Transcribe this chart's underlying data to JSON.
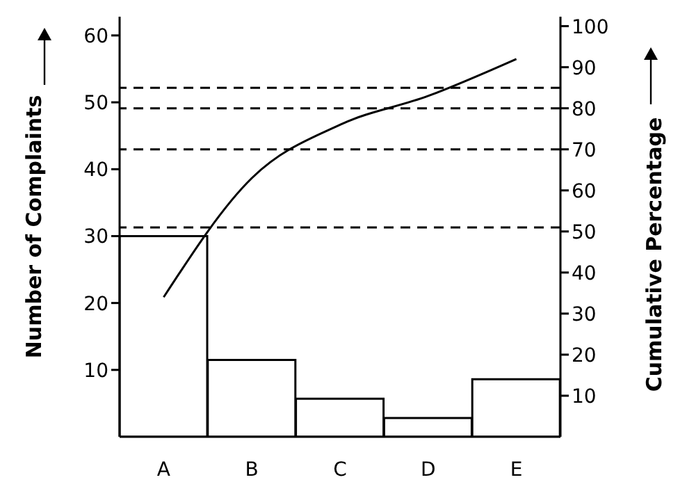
{
  "chart_data": {
    "type": "bar",
    "ylabel": "Number of Complaints",
    "y2label": "Cumulative Percentage",
    "categories": [
      "A",
      "B",
      "C",
      "D",
      "E"
    ],
    "series": [
      {
        "color": "#000000",
        "values": [
          30,
          11.5,
          5.7,
          2.8,
          8.6
        ]
      },
      {
        "type": "line",
        "axis": "y2",
        "color": "#000000",
        "values": [
          34,
          63,
          76,
          83,
          92
        ]
      }
    ],
    "ref_lines": [
      {
        "axis": "y2",
        "value": 51,
        "color": "#000000",
        "line_style": "dashed"
      },
      {
        "axis": "y2",
        "value": 70,
        "color": "#000000",
        "line_style": "dashed"
      },
      {
        "axis": "y2",
        "value": 80,
        "color": "#000000",
        "line_style": "dashed"
      },
      {
        "axis": "y2",
        "value": 85,
        "color": "#000000",
        "line_style": "dashed"
      }
    ],
    "ylim": [
      0,
      62.8
    ],
    "yticks": [
      10,
      20,
      30,
      40,
      50,
      60
    ],
    "y2lim": [
      0,
      102.3
    ],
    "y2ticks": [
      10,
      20,
      30,
      40,
      50,
      60,
      70,
      80,
      90,
      100
    ],
    "line_style": "solid",
    "marker": "none",
    "grid": false,
    "legend": false
  }
}
